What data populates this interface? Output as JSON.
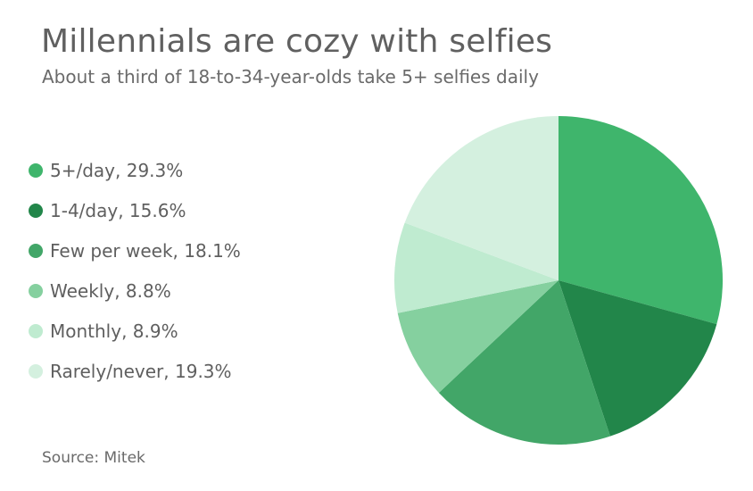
{
  "title": "Millennials are cozy with selfies",
  "subtitle": "About a third of 18-to-34-year-olds take 5+ selfies daily",
  "source": "Source: Mitek",
  "chart_data": {
    "type": "pie",
    "title": "Millennials are cozy with selfies",
    "subtitle": "About a third of 18-to-34-year-olds take 5+ selfies daily",
    "legend_position": "left",
    "slices": [
      {
        "label": "5+/day",
        "value": 29.3,
        "legend": "5+/day, 29.3%",
        "color": "#3fb56c"
      },
      {
        "label": "1-4/day",
        "value": 15.6,
        "legend": "1-4/day, 15.6%",
        "color": "#22864a"
      },
      {
        "label": "Few per week",
        "value": 18.1,
        "legend": "Few per week, 18.1%",
        "color": "#42a668"
      },
      {
        "label": "Weekly",
        "value": 8.8,
        "legend": "Weekly, 8.8%",
        "color": "#85d09f"
      },
      {
        "label": "Monthly",
        "value": 8.9,
        "legend": "Monthly, 8.9%",
        "color": "#bfebd0"
      },
      {
        "label": "Rarely/never",
        "value": 19.3,
        "legend": "Rarely/never, 19.3%",
        "color": "#d4f0df"
      }
    ]
  }
}
